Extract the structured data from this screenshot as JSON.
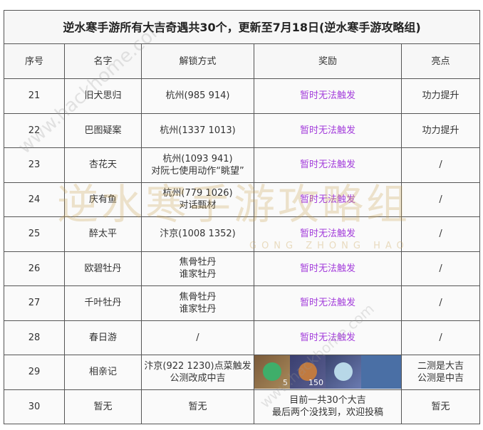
{
  "title": "逆水寒手游所有大吉奇遇共30个，更新至7月18日(逆水寒手游攻略组)",
  "headers": [
    "序号",
    "名字",
    "解锁方式",
    "奖励",
    "亮点"
  ],
  "rows": [
    {
      "no": "21",
      "name": "旧犬思归",
      "unlock": [
        "杭州(985 914)"
      ],
      "reward": [
        "暂时无法触发"
      ],
      "highlight": [
        "功力提升"
      ]
    },
    {
      "no": "22",
      "name": "巴图疑案",
      "unlock": [
        "杭州(1337 1013)"
      ],
      "reward": [
        "暂时无法触发"
      ],
      "highlight": [
        "功力提升"
      ]
    },
    {
      "no": "23",
      "name": "杏花天",
      "unlock": [
        "杭州(1093 941)",
        "对阮七使用动作“眺望”"
      ],
      "reward": [
        "暂时无法触发"
      ],
      "highlight": [
        "/"
      ]
    },
    {
      "no": "24",
      "name": "庆有鱼",
      "unlock": [
        "杭州(779 1026)",
        "对话甄材"
      ],
      "reward": [
        "暂时无法触发"
      ],
      "highlight": [
        "/"
      ]
    },
    {
      "no": "25",
      "name": "醉太平",
      "unlock": [
        "汴京(1008 1352)"
      ],
      "reward": [
        "暂时无法触发"
      ],
      "highlight": [
        "/"
      ]
    },
    {
      "no": "26",
      "name": "欧碧牡丹",
      "unlock": [
        "焦骨牡丹",
        "谁家牡丹"
      ],
      "reward": [
        "暂时无法触发"
      ],
      "highlight": [
        "/"
      ]
    },
    {
      "no": "27",
      "name": "千叶牡丹",
      "unlock": [
        "焦骨牡丹",
        "谁家牡丹"
      ],
      "reward": [
        "暂时无法触发"
      ],
      "highlight": [
        "/"
      ]
    },
    {
      "no": "28",
      "name": "春日游",
      "unlock": [
        "/"
      ],
      "reward": [
        "暂时无法触发"
      ],
      "highlight": [
        "/"
      ]
    },
    {
      "no": "29",
      "name": "相亲记",
      "unlock": [
        "汴京(922 1230)点菜触发",
        "公测改成中吉"
      ],
      "reward_items": [
        {
          "icon": "jade-ring-icon",
          "qty": "5"
        },
        {
          "icon": "chest-icon",
          "qty": "150"
        },
        {
          "icon": "crystal-icon",
          "qty": ""
        }
      ],
      "highlight": [
        "二测是大吉",
        "公测是中吉"
      ]
    },
    {
      "no": "30",
      "name": "暂无",
      "unlock": [
        "暂无"
      ],
      "reward": [
        "目前一共30个大吉",
        "最后两个没找到，欢迎投稿"
      ],
      "highlight": [
        "暂无"
      ]
    }
  ],
  "watermarks": {
    "site": "www.hackhome.com",
    "logo": "逆水寒手游攻略组",
    "logo_sub": "GONG ZHONG HAO",
    "corner": "逆水寒手游攻略组"
  },
  "colors": {
    "reward_text": "#a33ddb",
    "border": "#555555"
  }
}
